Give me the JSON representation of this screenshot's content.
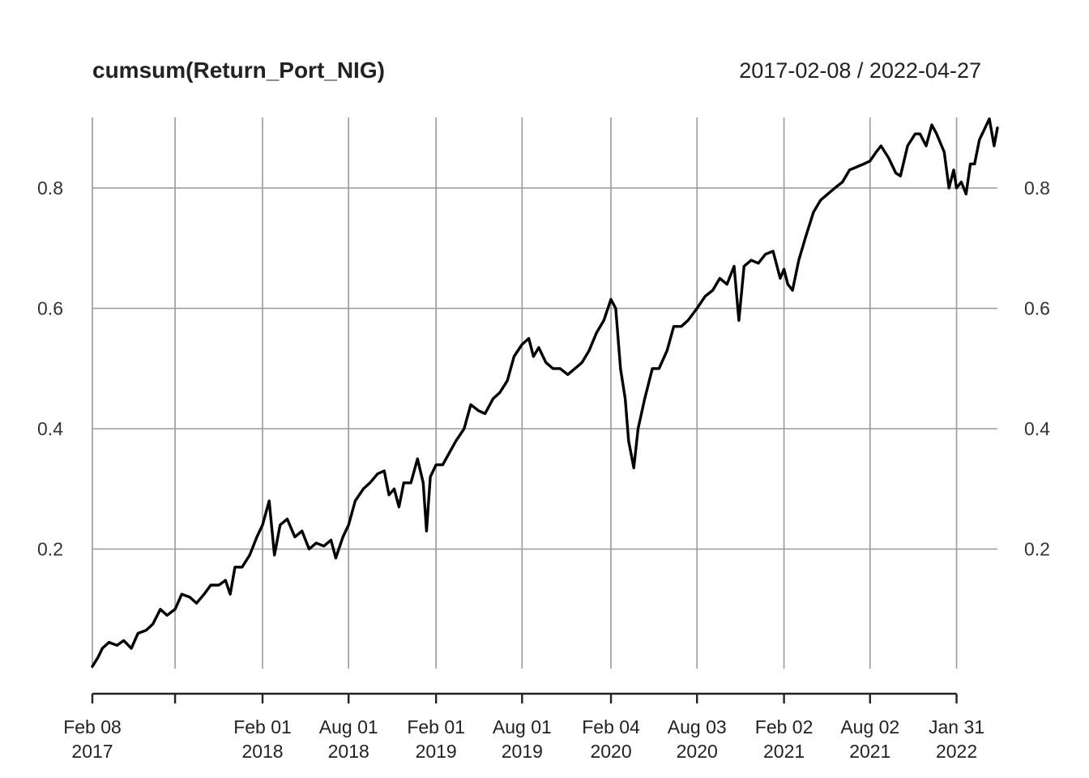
{
  "chart_data": {
    "type": "line",
    "title": "cumsum(Return_Port_NIG)",
    "date_range_label": "2017-02-08 / 2022-04-27",
    "xlabel": "",
    "ylabel": "",
    "x_range": [
      "2017-02-08",
      "2022-04-27"
    ],
    "ylim": [
      0.0,
      0.92
    ],
    "grid": true,
    "legend": "none",
    "y_ticks": [
      {
        "value": 0.2,
        "label": "0.2"
      },
      {
        "value": 0.4,
        "label": "0.4"
      },
      {
        "value": 0.6,
        "label": "0.6"
      },
      {
        "value": 0.8,
        "label": "0.8"
      }
    ],
    "x_ticks": [
      {
        "date": "2017-02-08",
        "line1": "Feb 08",
        "line2": "2017"
      },
      {
        "date": "2017-08-01",
        "line1": "",
        "line2": ""
      },
      {
        "date": "2018-02-01",
        "line1": "Feb 01",
        "line2": "2018"
      },
      {
        "date": "2018-08-01",
        "line1": "Aug 01",
        "line2": "2018"
      },
      {
        "date": "2019-02-01",
        "line1": "Feb 01",
        "line2": "2019"
      },
      {
        "date": "2019-08-01",
        "line1": "Aug 01",
        "line2": "2019"
      },
      {
        "date": "2020-02-04",
        "line1": "Feb 04",
        "line2": "2020"
      },
      {
        "date": "2020-08-03",
        "line1": "Aug 03",
        "line2": "2020"
      },
      {
        "date": "2021-02-02",
        "line1": "Feb 02",
        "line2": "2021"
      },
      {
        "date": "2021-08-02",
        "line1": "Aug 02",
        "line2": "2021"
      },
      {
        "date": "2022-01-31",
        "line1": "Jan 31",
        "line2": "2022"
      }
    ],
    "colors": {
      "line": "#000000",
      "grid": "#9a9a9a",
      "axis": "#222222"
    },
    "series": [
      {
        "values": [
          [
            "2017-02-08",
            0.005
          ],
          [
            "2017-02-20",
            0.02
          ],
          [
            "2017-03-01",
            0.035
          ],
          [
            "2017-03-15",
            0.045
          ],
          [
            "2017-04-01",
            0.04
          ],
          [
            "2017-04-15",
            0.048
          ],
          [
            "2017-05-01",
            0.035
          ],
          [
            "2017-05-15",
            0.06
          ],
          [
            "2017-06-01",
            0.065
          ],
          [
            "2017-06-15",
            0.075
          ],
          [
            "2017-07-01",
            0.1
          ],
          [
            "2017-07-15",
            0.09
          ],
          [
            "2017-08-01",
            0.1
          ],
          [
            "2017-08-15",
            0.125
          ],
          [
            "2017-09-01",
            0.12
          ],
          [
            "2017-09-15",
            0.11
          ],
          [
            "2017-10-01",
            0.125
          ],
          [
            "2017-10-15",
            0.14
          ],
          [
            "2017-11-01",
            0.14
          ],
          [
            "2017-11-15",
            0.148
          ],
          [
            "2017-11-25",
            0.125
          ],
          [
            "2017-12-05",
            0.17
          ],
          [
            "2017-12-20",
            0.17
          ],
          [
            "2018-01-05",
            0.19
          ],
          [
            "2018-01-20",
            0.22
          ],
          [
            "2018-02-01",
            0.24
          ],
          [
            "2018-02-15",
            0.28
          ],
          [
            "2018-02-26",
            0.19
          ],
          [
            "2018-03-10",
            0.24
          ],
          [
            "2018-03-25",
            0.25
          ],
          [
            "2018-04-10",
            0.22
          ],
          [
            "2018-04-25",
            0.23
          ],
          [
            "2018-05-10",
            0.2
          ],
          [
            "2018-05-25",
            0.21
          ],
          [
            "2018-06-10",
            0.205
          ],
          [
            "2018-06-25",
            0.215
          ],
          [
            "2018-07-05",
            0.185
          ],
          [
            "2018-07-20",
            0.22
          ],
          [
            "2018-08-01",
            0.24
          ],
          [
            "2018-08-15",
            0.28
          ],
          [
            "2018-09-01",
            0.3
          ],
          [
            "2018-09-15",
            0.31
          ],
          [
            "2018-10-01",
            0.325
          ],
          [
            "2018-10-15",
            0.33
          ],
          [
            "2018-10-25",
            0.29
          ],
          [
            "2018-11-05",
            0.3
          ],
          [
            "2018-11-15",
            0.27
          ],
          [
            "2018-11-25",
            0.31
          ],
          [
            "2018-12-10",
            0.31
          ],
          [
            "2018-12-24",
            0.35
          ],
          [
            "2019-01-05",
            0.31
          ],
          [
            "2019-01-12",
            0.23
          ],
          [
            "2019-01-20",
            0.32
          ],
          [
            "2019-02-01",
            0.34
          ],
          [
            "2019-02-15",
            0.34
          ],
          [
            "2019-03-01",
            0.36
          ],
          [
            "2019-03-15",
            0.38
          ],
          [
            "2019-04-01",
            0.4
          ],
          [
            "2019-04-15",
            0.44
          ],
          [
            "2019-05-01",
            0.43
          ],
          [
            "2019-05-15",
            0.425
          ],
          [
            "2019-06-01",
            0.45
          ],
          [
            "2019-06-15",
            0.46
          ],
          [
            "2019-07-01",
            0.48
          ],
          [
            "2019-07-15",
            0.52
          ],
          [
            "2019-08-01",
            0.54
          ],
          [
            "2019-08-15",
            0.55
          ],
          [
            "2019-08-25",
            0.52
          ],
          [
            "2019-09-05",
            0.535
          ],
          [
            "2019-09-20",
            0.51
          ],
          [
            "2019-10-05",
            0.5
          ],
          [
            "2019-10-20",
            0.5
          ],
          [
            "2019-11-05",
            0.49
          ],
          [
            "2019-11-20",
            0.5
          ],
          [
            "2019-12-05",
            0.51
          ],
          [
            "2019-12-20",
            0.53
          ],
          [
            "2020-01-05",
            0.56
          ],
          [
            "2020-01-20",
            0.58
          ],
          [
            "2020-02-04",
            0.615
          ],
          [
            "2020-02-14",
            0.6
          ],
          [
            "2020-02-24",
            0.5
          ],
          [
            "2020-03-05",
            0.45
          ],
          [
            "2020-03-12",
            0.38
          ],
          [
            "2020-03-23",
            0.335
          ],
          [
            "2020-04-01",
            0.4
          ],
          [
            "2020-04-15",
            0.45
          ],
          [
            "2020-05-01",
            0.5
          ],
          [
            "2020-05-15",
            0.5
          ],
          [
            "2020-06-01",
            0.53
          ],
          [
            "2020-06-15",
            0.57
          ],
          [
            "2020-07-01",
            0.57
          ],
          [
            "2020-07-15",
            0.58
          ],
          [
            "2020-08-03",
            0.6
          ],
          [
            "2020-08-20",
            0.62
          ],
          [
            "2020-09-05",
            0.63
          ],
          [
            "2020-09-20",
            0.65
          ],
          [
            "2020-10-05",
            0.64
          ],
          [
            "2020-10-20",
            0.67
          ],
          [
            "2020-10-30",
            0.58
          ],
          [
            "2020-11-10",
            0.67
          ],
          [
            "2020-11-25",
            0.68
          ],
          [
            "2020-12-10",
            0.675
          ],
          [
            "2020-12-25",
            0.69
          ],
          [
            "2021-01-10",
            0.695
          ],
          [
            "2021-01-25",
            0.65
          ],
          [
            "2021-02-02",
            0.665
          ],
          [
            "2021-02-10",
            0.64
          ],
          [
            "2021-02-20",
            0.63
          ],
          [
            "2021-03-05",
            0.68
          ],
          [
            "2021-03-20",
            0.72
          ],
          [
            "2021-04-05",
            0.76
          ],
          [
            "2021-04-20",
            0.78
          ],
          [
            "2021-05-05",
            0.79
          ],
          [
            "2021-05-20",
            0.8
          ],
          [
            "2021-06-05",
            0.81
          ],
          [
            "2021-06-20",
            0.83
          ],
          [
            "2021-07-05",
            0.835
          ],
          [
            "2021-07-20",
            0.84
          ],
          [
            "2021-08-02",
            0.845
          ],
          [
            "2021-08-15",
            0.86
          ],
          [
            "2021-08-25",
            0.87
          ],
          [
            "2021-09-10",
            0.85
          ],
          [
            "2021-09-25",
            0.825
          ],
          [
            "2021-10-05",
            0.82
          ],
          [
            "2021-10-20",
            0.87
          ],
          [
            "2021-11-05",
            0.89
          ],
          [
            "2021-11-15",
            0.89
          ],
          [
            "2021-11-28",
            0.87
          ],
          [
            "2021-12-10",
            0.905
          ],
          [
            "2021-12-20",
            0.89
          ],
          [
            "2022-01-05",
            0.86
          ],
          [
            "2022-01-15",
            0.8
          ],
          [
            "2022-01-25",
            0.83
          ],
          [
            "2022-01-31",
            0.8
          ],
          [
            "2022-02-10",
            0.81
          ],
          [
            "2022-02-20",
            0.79
          ],
          [
            "2022-03-01",
            0.84
          ],
          [
            "2022-03-10",
            0.84
          ],
          [
            "2022-03-20",
            0.88
          ],
          [
            "2022-04-01",
            0.9
          ],
          [
            "2022-04-10",
            0.915
          ],
          [
            "2022-04-20",
            0.87
          ],
          [
            "2022-04-27",
            0.9
          ]
        ]
      }
    ]
  }
}
